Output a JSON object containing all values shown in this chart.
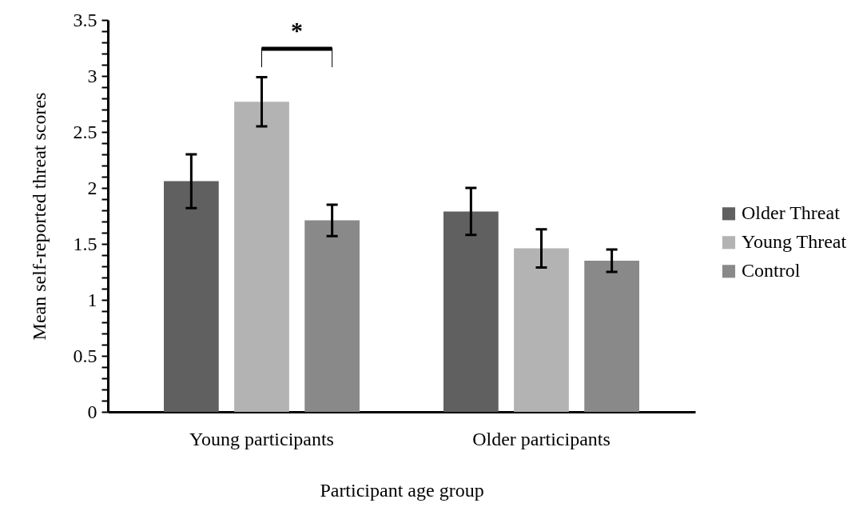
{
  "chart_data": {
    "type": "bar",
    "xlabel": "Participant age group",
    "ylabel": "Mean self-reported threat scores",
    "categories": [
      "Young participants",
      "Older participants"
    ],
    "series": [
      {
        "name": "Older Threat",
        "color": "#606060",
        "values": [
          2.06,
          1.79
        ],
        "errors": [
          0.24,
          0.21
        ]
      },
      {
        "name": "Young Threat",
        "color": "#b3b3b3",
        "values": [
          2.77,
          1.46
        ],
        "errors": [
          0.22,
          0.17
        ]
      },
      {
        "name": "Control",
        "color": "#898989",
        "values": [
          1.71,
          1.35
        ],
        "errors": [
          0.14,
          0.1
        ]
      }
    ],
    "ylim": [
      0,
      3.5
    ],
    "yticks": [
      0,
      {
        "value": 0.1,
        "label": null
      },
      {
        "value": 0.2,
        "label": null
      },
      {
        "value": 0.3,
        "label": null
      },
      {
        "value": 0.4,
        "label": null
      },
      0.5,
      {
        "value": 0.6,
        "label": null
      },
      {
        "value": 0.7,
        "label": null
      },
      {
        "value": 0.8,
        "label": null
      },
      {
        "value": 0.9,
        "label": null
      },
      1,
      {
        "value": 1.1,
        "label": null
      },
      {
        "value": 1.2,
        "label": null
      },
      {
        "value": 1.3,
        "label": null
      },
      {
        "value": 1.4,
        "label": null
      },
      1.5,
      {
        "value": 1.6,
        "label": null
      },
      {
        "value": 1.7,
        "label": null
      },
      {
        "value": 1.8,
        "label": null
      },
      {
        "value": 1.9,
        "label": null
      },
      2,
      {
        "value": 2.1,
        "label": null
      },
      {
        "value": 2.2,
        "label": null
      },
      {
        "value": 2.3,
        "label": null
      },
      {
        "value": 2.4,
        "label": null
      },
      2.5,
      {
        "value": 2.6,
        "label": null
      },
      {
        "value": 2.7,
        "label": null
      },
      {
        "value": 2.8,
        "label": null
      },
      {
        "value": 2.9,
        "label": null
      },
      3,
      {
        "value": 3.1,
        "label": null
      },
      {
        "value": 3.2,
        "label": null
      },
      {
        "value": 3.3,
        "label": null
      },
      {
        "value": 3.4,
        "label": null
      },
      3.5
    ],
    "annotations": [
      "*"
    ],
    "legend": "right",
    "grid": false
  }
}
